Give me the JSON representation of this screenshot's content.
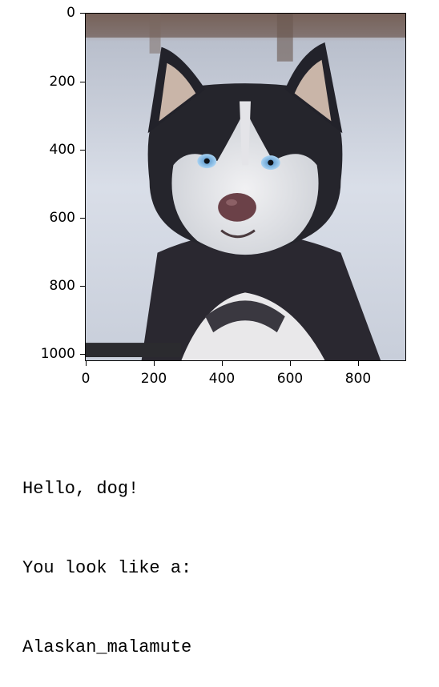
{
  "figure": {
    "image_description_icon": "husky-dog-photo-icon",
    "watermark_text": "",
    "x_ticks": [
      "0",
      "200",
      "400",
      "600",
      "800"
    ],
    "y_ticks": [
      "0",
      "200",
      "400",
      "600",
      "800",
      "1000"
    ]
  },
  "output": {
    "line1": "Hello, dog!",
    "line2": "You look like a:",
    "line3": "Alaskan_malamute"
  }
}
